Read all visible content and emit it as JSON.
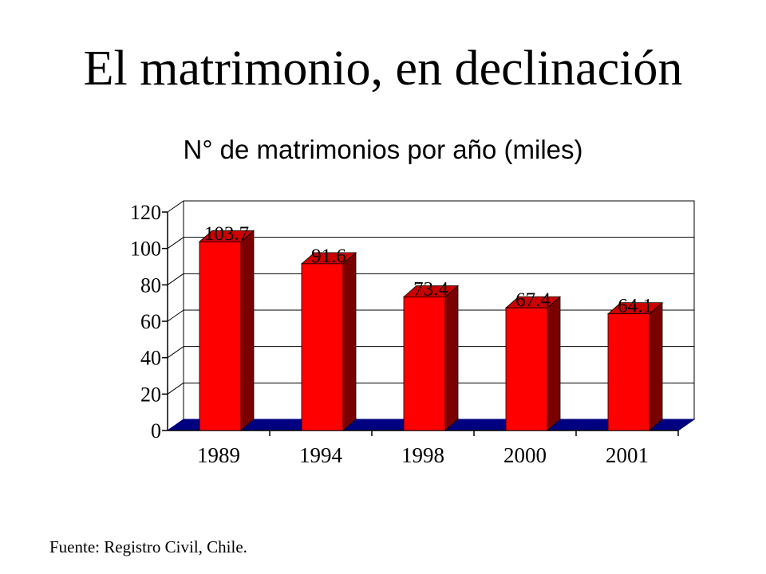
{
  "slide": {
    "title": "El matrimonio, en declinación",
    "source": "Fuente: Registro Civil, Chile."
  },
  "chart_data": {
    "type": "bar",
    "title": "N° de matrimonios por año (miles)",
    "categories": [
      "1989",
      "1994",
      "1998",
      "2000",
      "2001"
    ],
    "values": [
      103.7,
      91.6,
      73.4,
      67.4,
      64.1
    ],
    "data_labels": [
      "103.7",
      "91.6",
      "73.4",
      "67.4",
      "64.1"
    ],
    "y_ticks": [
      "0",
      "20",
      "40",
      "60",
      "80",
      "100",
      "120"
    ],
    "ylim": [
      0,
      120
    ],
    "grid": true,
    "style": "3d",
    "colors": {
      "bar_front": "#ff0000",
      "bar_side": "#7a0000",
      "bar_top": "#cc0000",
      "floor": "#000080",
      "grid": "#000000"
    }
  }
}
